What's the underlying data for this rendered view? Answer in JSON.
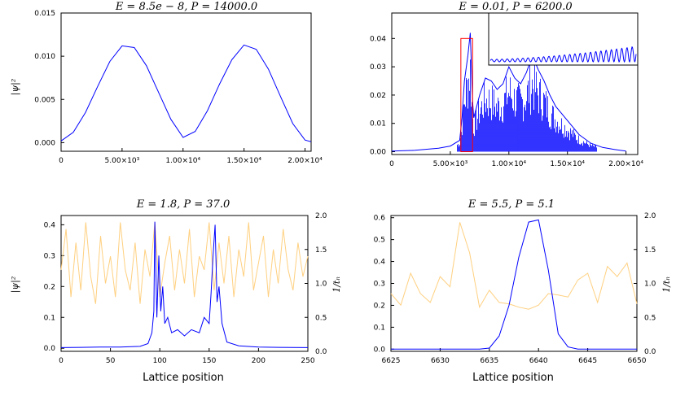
{
  "chart_data": [
    {
      "type": "line",
      "title": "E = 8.5e − 8, P = 14000.0",
      "xlabel": "",
      "ylabel": "|ψ|²",
      "xlim": [
        0,
        20500
      ],
      "ylim": [
        -0.001,
        0.015
      ],
      "xticks": [
        0,
        5000,
        10000,
        15000,
        20000
      ],
      "xtick_labels": [
        "0",
        "5.00×10³",
        "1.00×10⁴",
        "1.50×10⁴",
        "2.00×10⁴"
      ],
      "yticks": [
        0,
        0.005,
        0.01,
        0.015
      ],
      "ytick_labels": [
        "0.000",
        "0.005",
        "0.010",
        "0.015"
      ],
      "grid": false,
      "series": [
        {
          "color": "#0000ff",
          "x": [
            0,
            1000,
            2000,
            3000,
            4000,
            5000,
            6000,
            7000,
            8000,
            9000,
            10000,
            11000,
            12000,
            13000,
            14000,
            15000,
            16000,
            17000,
            18000,
            19000,
            20000,
            20500
          ],
          "y": [
            0.0002,
            0.0012,
            0.0035,
            0.0065,
            0.0094,
            0.0112,
            0.011,
            0.0089,
            0.0058,
            0.0027,
            0.0006,
            0.0013,
            0.0037,
            0.0068,
            0.0096,
            0.0113,
            0.0108,
            0.0085,
            0.0053,
            0.0022,
            0.0003,
            0.0001
          ]
        }
      ]
    },
    {
      "type": "line",
      "title": "E = 0.01, P = 6200.0",
      "xlabel": "",
      "ylabel": "",
      "xlim": [
        0,
        21000
      ],
      "ylim": [
        -0.001,
        0.049
      ],
      "xticks": [
        0,
        5000,
        10000,
        15000,
        20000
      ],
      "xtick_labels": [
        "0",
        "5.00×10³",
        "1.00×10⁴",
        "1.50×10⁴",
        "2.00×10⁴"
      ],
      "yticks": [
        0,
        0.01,
        0.02,
        0.03,
        0.04
      ],
      "ytick_labels": [
        "0.00",
        "0.01",
        "0.02",
        "0.03",
        "0.04"
      ],
      "grid": false,
      "highlight_box": {
        "x": [
          5900,
          6900
        ],
        "y": [
          0,
          0.04
        ],
        "color": "#ff0000"
      },
      "series": [
        {
          "color": "#0000ff",
          "x": [
            0,
            2000,
            4000,
            5000,
            5800,
            6000,
            6200,
            6500,
            6700,
            6900,
            7000,
            7500,
            8000,
            8500,
            9000,
            9500,
            10000,
            10500,
            11000,
            11500,
            12000,
            12500,
            13000,
            13500,
            14000,
            15000,
            16000,
            17000,
            18000,
            19000,
            20000
          ],
          "y": [
            0.0002,
            0.0005,
            0.0012,
            0.002,
            0.004,
            0.012,
            0.025,
            0.034,
            0.042,
            0.018,
            0.012,
            0.02,
            0.026,
            0.025,
            0.022,
            0.024,
            0.03,
            0.026,
            0.024,
            0.028,
            0.034,
            0.029,
            0.025,
            0.02,
            0.016,
            0.011,
            0.006,
            0.003,
            0.0015,
            0.0008,
            0.0002
          ]
        }
      ]
    },
    {
      "type": "line",
      "title": "E = 1.8, P = 37.0",
      "xlabel": "Lattice position",
      "ylabel": "|ψ|²",
      "ylabel_right": "1/tₙ",
      "xlim": [
        0,
        250
      ],
      "ylim": [
        -0.01,
        0.43
      ],
      "ylim_right": [
        0,
        2.0
      ],
      "xticks": [
        0,
        50,
        100,
        150,
        200,
        250
      ],
      "xtick_labels": [
        "0",
        "50",
        "100",
        "150",
        "200",
        "250"
      ],
      "yticks": [
        0,
        0.1,
        0.2,
        0.3,
        0.4
      ],
      "ytick_labels": [
        "0.0",
        "0.1",
        "0.2",
        "0.3",
        "0.4"
      ],
      "yticks_right": [
        0,
        0.5,
        1.0,
        1.5,
        2.0
      ],
      "ytick_labels_right": [
        "0.0",
        "0.5",
        "1.0",
        "1.5",
        "2.0"
      ],
      "grid": false,
      "series": [
        {
          "axis": "left",
          "color": "#0000ff",
          "x": [
            0,
            20,
            40,
            60,
            80,
            88,
            92,
            94,
            95,
            97,
            99,
            101,
            103,
            105,
            108,
            112,
            118,
            125,
            132,
            140,
            145,
            150,
            152,
            154,
            156,
            158,
            160,
            163,
            168,
            180,
            200,
            220,
            250
          ],
          "y": [
            0.002,
            0.003,
            0.004,
            0.004,
            0.006,
            0.015,
            0.05,
            0.12,
            0.41,
            0.1,
            0.3,
            0.12,
            0.2,
            0.08,
            0.1,
            0.05,
            0.06,
            0.04,
            0.06,
            0.05,
            0.1,
            0.08,
            0.18,
            0.3,
            0.4,
            0.15,
            0.2,
            0.08,
            0.02,
            0.008,
            0.004,
            0.003,
            0.002
          ]
        },
        {
          "axis": "right",
          "color": "#ffd080",
          "x": [
            0,
            5,
            10,
            15,
            20,
            25,
            30,
            35,
            40,
            45,
            50,
            55,
            60,
            65,
            70,
            75,
            80,
            85,
            90,
            95,
            100,
            105,
            110,
            115,
            120,
            125,
            130,
            135,
            140,
            145,
            150,
            155,
            160,
            165,
            170,
            175,
            180,
            185,
            190,
            195,
            200,
            205,
            210,
            215,
            220,
            225,
            230,
            235,
            240,
            245,
            250
          ],
          "y": [
            1.2,
            1.8,
            0.8,
            1.6,
            0.9,
            1.9,
            1.1,
            0.7,
            1.7,
            1.0,
            1.4,
            0.8,
            1.9,
            1.2,
            0.9,
            1.6,
            0.7,
            1.5,
            1.1,
            1.9,
            0.8,
            1.3,
            1.7,
            0.9,
            1.5,
            1.0,
            1.8,
            0.8,
            1.4,
            1.2,
            1.9,
            0.9,
            1.6,
            1.0,
            1.7,
            0.8,
            1.5,
            1.1,
            1.9,
            0.9,
            1.3,
            1.7,
            0.8,
            1.5,
            1.0,
            1.8,
            1.2,
            0.9,
            1.6,
            1.1,
            1.4
          ]
        }
      ]
    },
    {
      "type": "line",
      "title": "E = 5.5, P = 5.1",
      "xlabel": "Lattice position",
      "ylabel": "",
      "ylabel_right": "1/tₙ",
      "xlim": [
        6625,
        6650
      ],
      "ylim": [
        -0.01,
        0.61
      ],
      "ylim_right": [
        0,
        2.0
      ],
      "xticks": [
        6625,
        6630,
        6635,
        6640,
        6645,
        6650
      ],
      "xtick_labels": [
        "6625",
        "6630",
        "6635",
        "6640",
        "6645",
        "6650"
      ],
      "yticks": [
        0,
        0.1,
        0.2,
        0.3,
        0.4,
        0.5,
        0.6
      ],
      "ytick_labels": [
        "0.0",
        "0.1",
        "0.2",
        "0.3",
        "0.4",
        "0.5",
        "0.6"
      ],
      "yticks_right": [
        0,
        0.5,
        1.0,
        1.5,
        2.0
      ],
      "ytick_labels_right": [
        "0.0",
        "0.5",
        "1.0",
        "1.5",
        "2.0"
      ],
      "grid": false,
      "series": [
        {
          "axis": "left",
          "color": "#0000ff",
          "x": [
            6625,
            6626,
            6627,
            6628,
            6629,
            6630,
            6631,
            6632,
            6633,
            6634,
            6635,
            6636,
            6637,
            6638,
            6639,
            6640,
            6641,
            6642,
            6643,
            6644,
            6645,
            6646,
            6647,
            6648,
            6649,
            6650
          ],
          "y": [
            0,
            0,
            0,
            0,
            0,
            0,
            0,
            0,
            0,
            0,
            0.005,
            0.06,
            0.2,
            0.42,
            0.58,
            0.59,
            0.36,
            0.07,
            0.01,
            0,
            0,
            0,
            0,
            0,
            0,
            0
          ]
        },
        {
          "axis": "right",
          "color": "#ffd080",
          "x": [
            6625,
            6626,
            6627,
            6628,
            6629,
            6630,
            6631,
            6632,
            6633,
            6634,
            6635,
            6636,
            6637,
            6638,
            6639,
            6640,
            6641,
            6642,
            6643,
            6644,
            6645,
            6646,
            6647,
            6648,
            6649,
            6650
          ],
          "y": [
            0.85,
            0.68,
            1.15,
            0.85,
            0.72,
            1.1,
            0.95,
            1.9,
            1.45,
            0.65,
            0.9,
            0.72,
            0.7,
            0.65,
            0.62,
            0.68,
            0.85,
            0.83,
            0.8,
            1.05,
            1.15,
            0.72,
            1.25,
            1.1,
            1.3,
            0.7
          ]
        }
      ]
    }
  ]
}
